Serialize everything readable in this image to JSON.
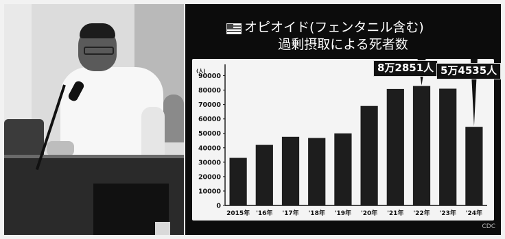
{
  "chart_data": {
    "type": "bar",
    "title": "オピオイド(フェンタニル含む)",
    "subtitle": "過剰摂取による死者数",
    "ylabel": "(人)",
    "categories": [
      "2015年",
      "'16年",
      "'17年",
      "'18年",
      "'19年",
      "'20年",
      "'21年",
      "'22年",
      "'23年",
      "'24年"
    ],
    "values": [
      33000,
      42000,
      47600,
      46800,
      50000,
      69000,
      80800,
      82851,
      81000,
      54535
    ],
    "yticks": [
      0,
      10000,
      20000,
      30000,
      40000,
      50000,
      60000,
      70000,
      80000,
      90000
    ],
    "ylim": [
      0,
      95000
    ],
    "annotations": [
      {
        "category": "'22年",
        "label": "8万2851人"
      },
      {
        "category": "'24年",
        "label": "5万4535人"
      }
    ],
    "grid": false,
    "colors": {
      "bar": "#1d1d1d",
      "plot_bg": "#f4f4f4",
      "panel_bg": "#0c0c0c"
    },
    "source": "CDC"
  },
  "photo": {
    "icon": "speaker-photo"
  }
}
